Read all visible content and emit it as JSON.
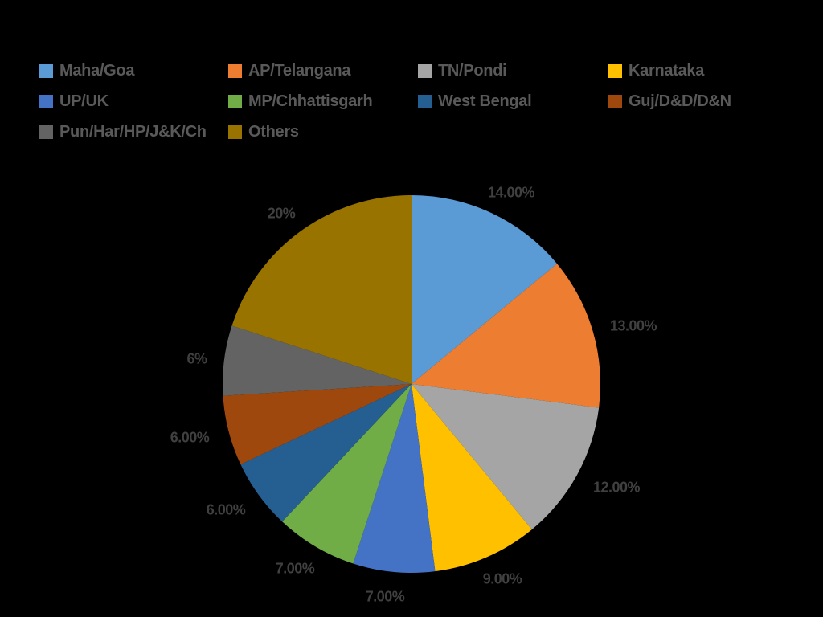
{
  "chart_data": {
    "type": "pie",
    "title": "",
    "start_angle_deg": 0,
    "direction": "clockwise",
    "legend_position": "top",
    "categories": [
      "Maha/Goa",
      "AP/Telangana",
      "TN/Pondi",
      "Karnataka",
      "UP/UK",
      "MP/Chhattisgarh",
      "West Bengal",
      "Guj/D&D/D&N",
      "Pun/Har/HP/J&K/Ch",
      "Others"
    ],
    "values": [
      14,
      13,
      12,
      9,
      7,
      7,
      6,
      6,
      6,
      20
    ],
    "colors": [
      "#5B9BD5",
      "#ED7D31",
      "#A5A5A5",
      "#FFC000",
      "#4472C4",
      "#70AD47",
      "#255E91",
      "#9E480E",
      "#636363",
      "#997300"
    ],
    "data_labels": [
      "14.00%",
      "13.00%",
      "12.00%",
      "9.00%",
      "7.00%",
      "7.00%",
      "6.00%",
      "6.00%",
      "6%",
      "20%"
    ]
  },
  "legend": [
    {
      "label": "Maha/Goa",
      "color": "#5B9BD5"
    },
    {
      "label": "AP/Telangana",
      "color": "#ED7D31"
    },
    {
      "label": "TN/Pondi",
      "color": "#A5A5A5"
    },
    {
      "label": "Karnataka",
      "color": "#FFC000"
    },
    {
      "label": "UP/UK",
      "color": "#4472C4"
    },
    {
      "label": "MP/Chhattisgarh",
      "color": "#70AD47"
    },
    {
      "label": "West Bengal",
      "color": "#255E91"
    },
    {
      "label": "Guj/D&D/D&N",
      "color": "#9E480E"
    },
    {
      "label": "Pun/Har/HP/J&K/Ch",
      "color": "#636363"
    },
    {
      "label": "Others",
      "color": "#997300"
    }
  ],
  "labels": {
    "maha_goa": "14.00%",
    "ap_telangana": "13.00%",
    "tn_pondi": "12.00%",
    "karnataka": "9.00%",
    "up_uk": "7.00%",
    "mp_chhattisgarh": "7.00%",
    "west_bengal": "6.00%",
    "guj_dd_dn": "6.00%",
    "pun_har": "6%",
    "others": "20%"
  }
}
